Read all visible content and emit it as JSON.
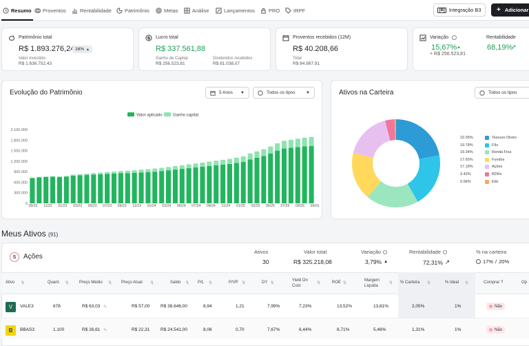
{
  "nav": {
    "items": [
      "Resumo",
      "Proventos",
      "Rentabilidade",
      "Patrimônio",
      "Metas",
      "Análise",
      "Lançamentos",
      "PRO",
      "IRPF"
    ],
    "b3_button": "Integração B3",
    "add_button": "Adicionar"
  },
  "kpis": {
    "patrimonio": {
      "label": "Patrimônio total",
      "value": "R$ 1.893.276,24",
      "badge": "16%",
      "sub_label": "Valor investido",
      "sub_value": "R$ 1.636.752,43"
    },
    "lucro": {
      "label": "Lucro total",
      "value": "R$ 337.561,88",
      "gain_label": "Ganho de Capital",
      "gain_value": "R$ 256.523,81",
      "div_label": "Dividendos recebidos",
      "div_value": "R$ 81.038,07"
    },
    "proventos": {
      "label": "Proventos recebidos (12M)",
      "value": "R$ 40.208,66",
      "total_label": "Total",
      "total_value": "R$ 84.987,91"
    },
    "variacao": {
      "label": "Variação",
      "value": "15,67%",
      "sub_value": "+ R$ 256.523,81",
      "rent_label": "Rentabilidade",
      "rent_value": "68,19%"
    }
  },
  "evolucao": {
    "title": "Evolução do Patrimônio",
    "period": "5 Anos",
    "type": "Todos os tipos"
  },
  "ativos_carteira": {
    "title": "Ativos na Carteira",
    "type": "Todos os tipos"
  },
  "chart_data": [
    {
      "type": "bar",
      "title": "",
      "series": [
        {
          "name": "Valor aplicado",
          "color": "#22b55e",
          "values": [
            720000,
            740000,
            750000,
            760000,
            750000,
            760000,
            790000,
            800000,
            810000,
            820000,
            830000,
            840000,
            850000,
            860000,
            860000,
            870000,
            880000,
            890000,
            900000,
            920000,
            940000,
            960000,
            980000,
            1000000,
            1020000,
            1040000,
            1060000,
            1080000,
            1100000,
            1120000,
            1150000,
            1180000,
            1250000,
            1300000,
            1350000,
            1420000,
            1500000,
            1560000,
            1580000,
            1600000,
            1620000,
            1630000
          ]
        },
        {
          "name": "Ganho capital",
          "color": "#8fe3b0",
          "values": [
            10000,
            15000,
            15000,
            12000,
            15000,
            20000,
            25000,
            30000,
            35000,
            40000,
            45000,
            50000,
            55000,
            60000,
            70000,
            75000,
            80000,
            85000,
            90000,
            90000,
            95000,
            100000,
            105000,
            110000,
            115000,
            120000,
            130000,
            135000,
            140000,
            145000,
            150000,
            160000,
            170000,
            180000,
            190000,
            200000,
            210000,
            220000,
            230000,
            240000,
            250000,
            260000
          ]
        }
      ],
      "x_tick_labels": [
        "09/22",
        "01/23",
        "05/23",
        "09/23",
        "01/24",
        "05/24",
        "09/24",
        "01/25",
        "05/25",
        "09/25"
      ],
      "x_ticks_full": [
        "09/22",
        "11/22",
        "01/23",
        "03/23",
        "05/23",
        "07/23",
        "09/23",
        "11/23",
        "01/24",
        "03/24",
        "05/24",
        "07/24",
        "09/24",
        "11/24",
        "01/25",
        "03/25",
        "05/25",
        "07/25",
        "09/25",
        "09/01"
      ],
      "y_tick_labels": [
        "0",
        "300.000",
        "600.000",
        "900.000",
        "1.200.000",
        "1.500.000",
        "1.800.000",
        "2.100.000"
      ],
      "ylim": [
        0,
        2100000
      ]
    },
    {
      "type": "pie",
      "slices": [
        {
          "label": "Tesouro Direto",
          "pct": "22.05%",
          "value": 22.05,
          "color": "#2d9bd6"
        },
        {
          "label": "FIIs",
          "pct": "19.78%",
          "value": 19.78,
          "color": "#2ec5e8"
        },
        {
          "label": "Renda Fixa",
          "pct": "19.34%",
          "value": 19.34,
          "color": "#9be6be"
        },
        {
          "label": "Fundos",
          "pct": "17.65%",
          "value": 17.65,
          "color": "#ffd85c"
        },
        {
          "label": "Ações",
          "pct": "17.18%",
          "value": 17.18,
          "color": "#e7c0f0"
        },
        {
          "label": "BDRs",
          "pct": "3.43%",
          "value": 3.43,
          "color": "#f0769a"
        },
        {
          "label": "Etfs",
          "pct": "0.58%",
          "value": 0.58,
          "color": "#f5a968"
        }
      ]
    }
  ],
  "meus_ativos": {
    "title": "Meus Ativos",
    "count": "(91)",
    "acoes": {
      "label": "Ações",
      "ativos_label": "Ativos",
      "ativos_value": "30",
      "total_label": "Valor total",
      "total_value": "R$ 325.218,08",
      "variacao_label": "Variação",
      "variacao_value": "3,79%",
      "rent_label": "Rentabilidade",
      "rent_value": "72,31%",
      "carteira_label": "% na carteira",
      "carteira_value": "17%",
      "carteira_ideal": "20%"
    },
    "columns": [
      "Ativo",
      "Quant.",
      "Preço Médio",
      "Preço Atual",
      "Saldo",
      "P/L",
      "P/VP",
      "DY",
      "Yield On Cost",
      "ROE",
      "Margem Líquida",
      "% Carteira",
      "% Ideal",
      "Comprar ?",
      "Op"
    ],
    "rows": [
      {
        "ticker": "VALE3",
        "quant": "678",
        "pm": "R$ 63,03",
        "pa": "R$ 57,00",
        "saldo": "R$ 38.646,00",
        "pl": "8,94",
        "pvp": "1,21",
        "dy": "7,99%",
        "yoc": "7,23%",
        "roe": "13,52%",
        "ml": "13,81%",
        "cart": "2,05%",
        "ideal": "1%",
        "comprar": "Não"
      },
      {
        "ticker": "BBAS3",
        "quant": "1.100",
        "pm": "R$ 26,61",
        "pa": "R$ 22,31",
        "saldo": "R$ 24.541,00",
        "pl": "8,06",
        "pvp": "0,70",
        "dy": "7,67%",
        "yoc": "6,44%",
        "roe": "8,71%",
        "ml": "5,48%",
        "cart": "1,31%",
        "ideal": "1%",
        "comprar": "Não"
      }
    ]
  }
}
